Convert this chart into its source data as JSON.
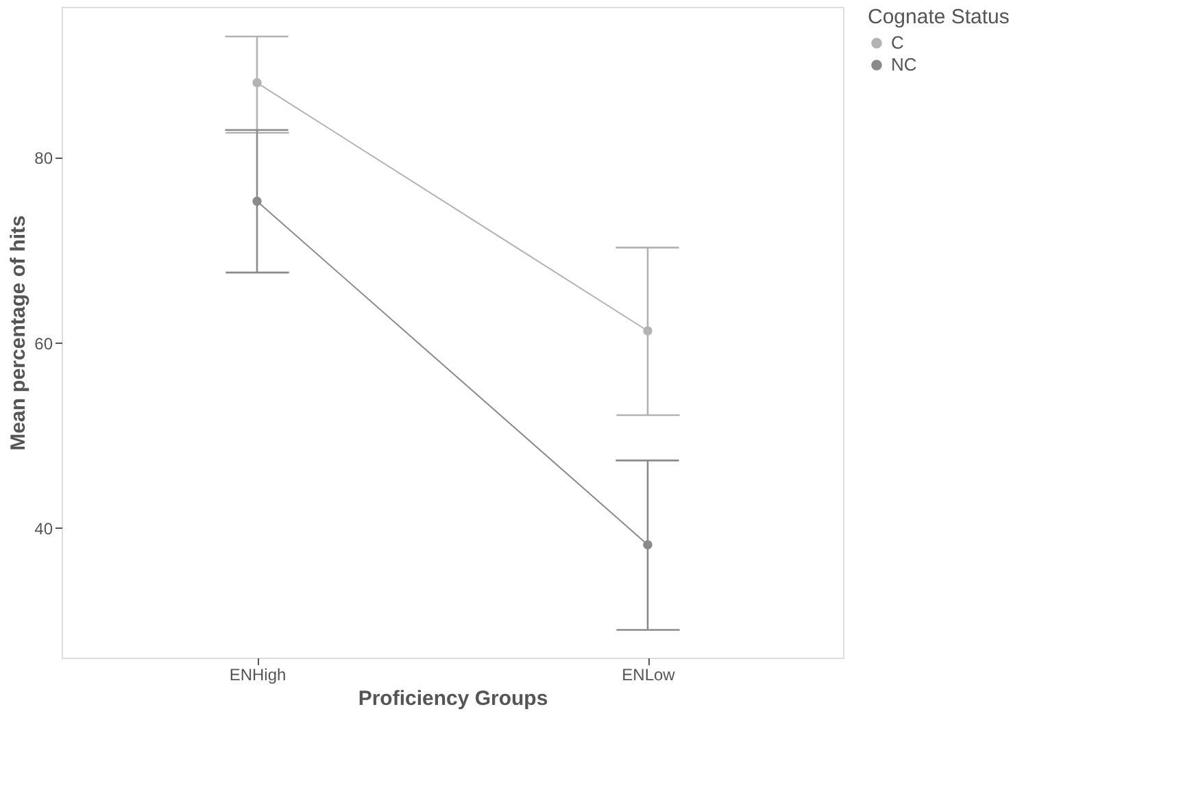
{
  "chart_data": {
    "type": "line",
    "xlabel": "Proficiency Groups",
    "ylabel": "Mean percentage of hits",
    "legend_title": "Cognate Status",
    "categories": [
      "ENHigh",
      "ENLow"
    ],
    "series": [
      {
        "name": "C",
        "color": "#b3b3b3",
        "values": [
          88.1,
          61.3
        ],
        "errors": [
          [
            82.7,
            93.1
          ],
          [
            52.2,
            70.3
          ]
        ]
      },
      {
        "name": "NC",
        "color": "#8a8a8a",
        "values": [
          75.3,
          38.2
        ],
        "errors": [
          [
            67.6,
            83.0
          ],
          [
            29.0,
            47.3
          ]
        ]
      }
    ],
    "ylim": [
      26,
      96.3
    ],
    "yticks": [
      40,
      60,
      80
    ],
    "grid": false,
    "legend": "right",
    "marker": "circle",
    "line_style": "solid"
  }
}
